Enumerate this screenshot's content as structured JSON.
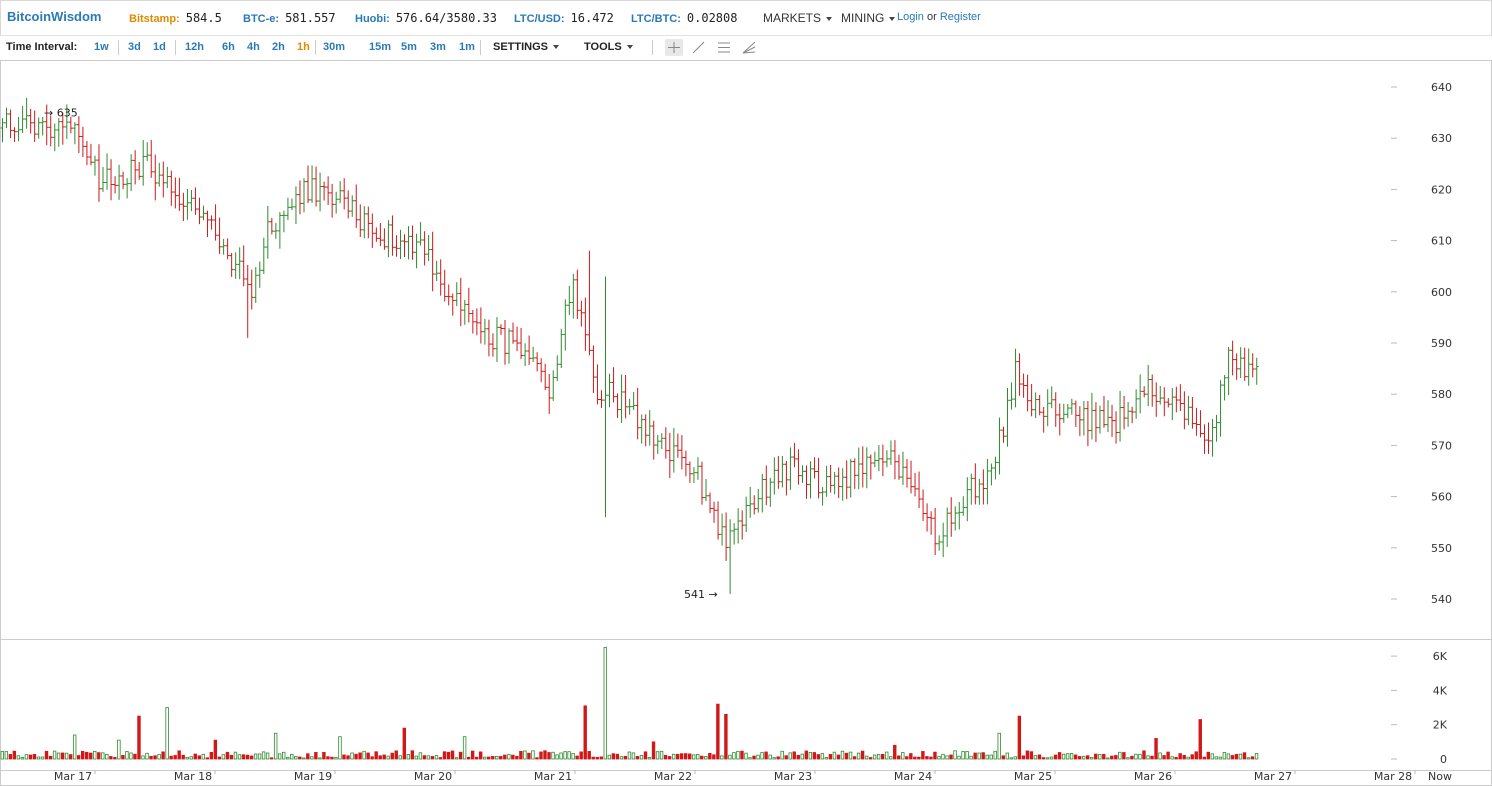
{
  "header": {
    "logo": "BitcoinWisdom",
    "tickers": [
      {
        "label": "Bitstamp:",
        "value": "584.5",
        "color": "#e08a00"
      },
      {
        "label": "BTC-e:",
        "value": "581.557",
        "color": "#2a7ab8"
      },
      {
        "label": "Huobi:",
        "value": "576.64/3580.33",
        "color": "#2a7ab8"
      },
      {
        "label": "LTC/USD:",
        "value": "16.472",
        "color": "#2a7ab8"
      },
      {
        "label": "LTC/BTC:",
        "value": "0.02808",
        "color": "#2a7ab8"
      }
    ],
    "markets_label": "MARKETS",
    "mining_label": "MINING",
    "login_label": "Login",
    "or_label": "or",
    "register_label": "Register"
  },
  "toolbar": {
    "interval_label": "Time Interval:",
    "groups": [
      [
        "1w"
      ],
      [
        "3d",
        "1d"
      ],
      [
        "12h",
        "6h",
        "4h",
        "2h",
        "1h"
      ],
      [
        "30m",
        "15m",
        "5m",
        "3m",
        "1m"
      ]
    ],
    "active_interval": "1h",
    "settings_label": "SETTINGS",
    "tools_label": "TOOLS",
    "tool_icons": [
      "crosshair-icon",
      "line-draw-icon",
      "parallel-lines-icon",
      "fan-lines-icon"
    ]
  },
  "colors": {
    "up": "#2e8b2e",
    "down": "#d01818",
    "accent": "#2a7ab8",
    "orange": "#e08a00"
  },
  "chart_data": {
    "type": "ohlc",
    "price_ticks": [
      540,
      550,
      560,
      570,
      580,
      590,
      600,
      610,
      620,
      630,
      640
    ],
    "ylim": [
      535,
      645
    ],
    "volume_ticks": [
      {
        "v": 0,
        "label": "0"
      },
      {
        "v": 2000,
        "label": "2K"
      },
      {
        "v": 4000,
        "label": "4K"
      },
      {
        "v": 6000,
        "label": "6K"
      }
    ],
    "volume_ylim": [
      0,
      6800
    ],
    "x_ticks": [
      "Mar 17",
      "Mar 18",
      "Mar 19",
      "Mar 20",
      "Mar 21",
      "Mar 22",
      "Mar 23",
      "Mar 24",
      "Mar 25",
      "Mar 26",
      "Mar 27",
      "Mar 28",
      "Now"
    ],
    "annotations": [
      {
        "text": "635",
        "price": 635,
        "marker": "→",
        "side": "left"
      },
      {
        "text": "541",
        "price": 541,
        "marker": "→",
        "side": "right"
      }
    ],
    "price_keypoints": [
      [
        0,
        633
      ],
      [
        10,
        632
      ],
      [
        16,
        634
      ],
      [
        20,
        630
      ],
      [
        24,
        621
      ],
      [
        36,
        625
      ],
      [
        42,
        621
      ],
      [
        52,
        612
      ],
      [
        62,
        600
      ],
      [
        66,
        612
      ],
      [
        76,
        620
      ],
      [
        84,
        618
      ],
      [
        94,
        611
      ],
      [
        104,
        610
      ],
      [
        110,
        600
      ],
      [
        120,
        592
      ],
      [
        126,
        590
      ],
      [
        136,
        581
      ],
      [
        142,
        602
      ],
      [
        148,
        581
      ],
      [
        156,
        578
      ],
      [
        162,
        570
      ],
      [
        172,
        566
      ],
      [
        180,
        551
      ],
      [
        186,
        558
      ],
      [
        194,
        566
      ],
      [
        206,
        562
      ],
      [
        214,
        566
      ],
      [
        222,
        567
      ],
      [
        232,
        552
      ],
      [
        240,
        561
      ],
      [
        246,
        564
      ],
      [
        252,
        584
      ],
      [
        256,
        577
      ],
      [
        266,
        576
      ],
      [
        276,
        574
      ],
      [
        284,
        581
      ],
      [
        292,
        577
      ],
      [
        296,
        575
      ],
      [
        300,
        569
      ],
      [
        305,
        587
      ],
      [
        312,
        585
      ]
    ],
    "volume_spikes": [
      [
        18,
        1400
      ],
      [
        29,
        1100
      ],
      [
        34,
        2500
      ],
      [
        41,
        3000
      ],
      [
        53,
        1100
      ],
      [
        68,
        1500
      ],
      [
        84,
        1300
      ],
      [
        100,
        1800
      ],
      [
        115,
        1300
      ],
      [
        145,
        3100
      ],
      [
        150,
        6500
      ],
      [
        162,
        1000
      ],
      [
        178,
        3200
      ],
      [
        180,
        2600
      ],
      [
        222,
        800
      ],
      [
        248,
        1500
      ],
      [
        253,
        2500
      ],
      [
        287,
        1200
      ],
      [
        298,
        2300
      ]
    ]
  }
}
